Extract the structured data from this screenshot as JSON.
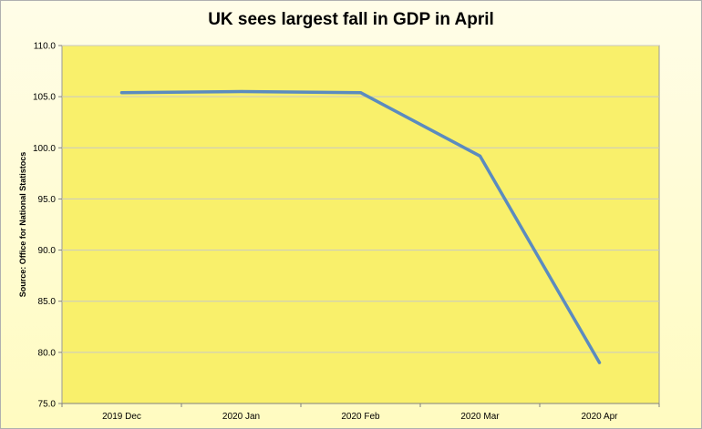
{
  "chart_data": {
    "type": "line",
    "title": "UK sees largest fall in GDP in April",
    "ylabel": "Source: Office for National Statistocs",
    "xlabel": "",
    "categories": [
      "2019 Dec",
      "2020 Jan",
      "2020 Feb",
      "2020 Mar",
      "2020 Apr"
    ],
    "series": [
      {
        "values": [
          105.4,
          105.5,
          105.4,
          99.2,
          79.0
        ]
      }
    ],
    "ylim": [
      75.0,
      110.0
    ],
    "yticks": [
      "75.0",
      "80.0",
      "85.0",
      "90.0",
      "95.0",
      "100.0",
      "105.0",
      "110.0"
    ],
    "grid": true,
    "legend": "none",
    "colors": {
      "plot_background": "#f9f06b",
      "line": "#5b8bbf",
      "grid": "#c8c8c8"
    }
  }
}
